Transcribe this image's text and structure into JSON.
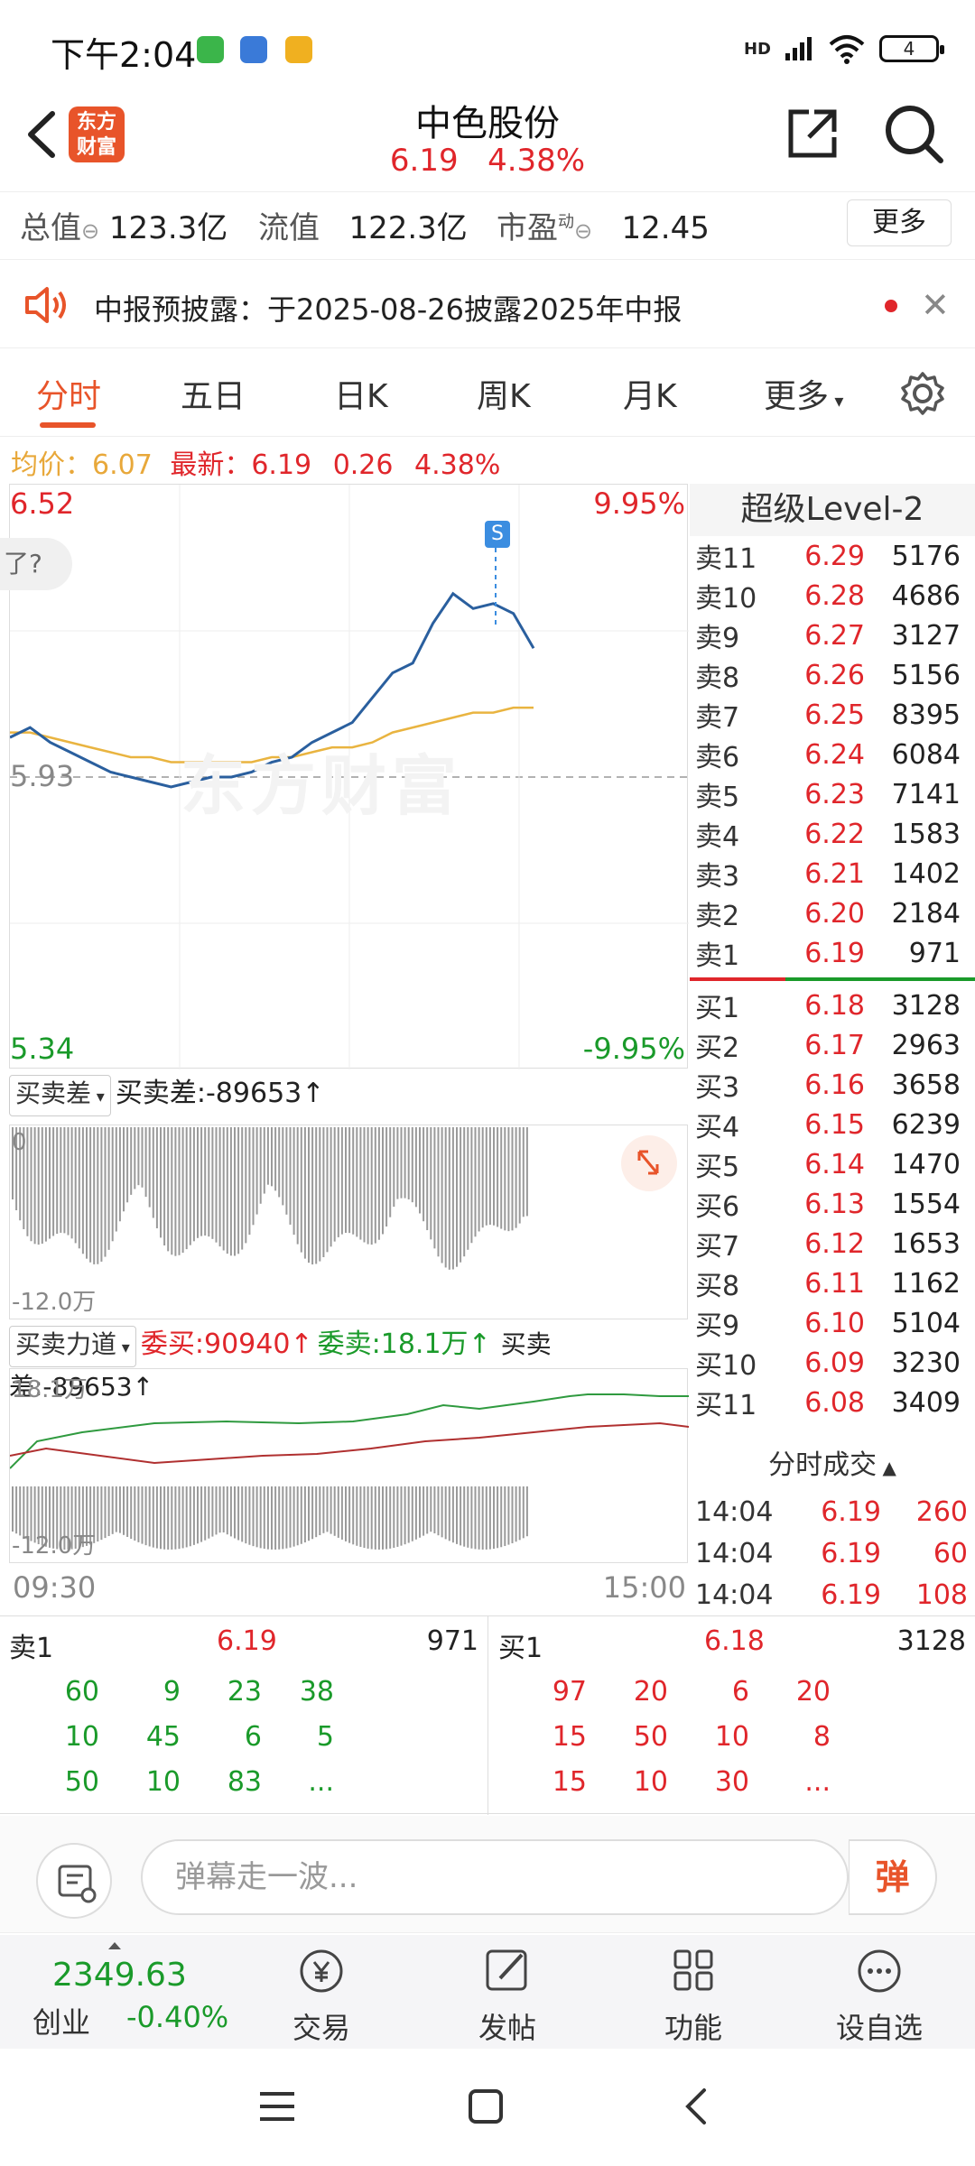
{
  "status_bar": {
    "time": "下午2:04",
    "network": "HD",
    "battery": "4"
  },
  "header": {
    "logo_line1": "东方",
    "logo_line2": "财富",
    "stock_name": "中色股份",
    "price": "6.19",
    "change_pct": "4.38%"
  },
  "metrics": {
    "total_value_label": "总值",
    "total_value": "123.3亿",
    "float_value_label": "流值",
    "float_value": "122.3亿",
    "pe_label": "市盈",
    "pe_sup": "动",
    "pe_value": "12.45",
    "more_label": "更多"
  },
  "notice": {
    "text": "中报预披露：于2025-08-26披露2025年中报"
  },
  "tabs": [
    {
      "label": "分时"
    },
    {
      "label": "五日"
    },
    {
      "label": "日K"
    },
    {
      "label": "周K"
    },
    {
      "label": "月K"
    },
    {
      "label": "更多"
    }
  ],
  "avgline": {
    "avg_label": "均价：",
    "avg_value": "6.07",
    "last_label": "最新：",
    "last_value": "6.19",
    "change": "0.26",
    "change_pct": "4.38%"
  },
  "chart_main": {
    "top_price": "6.52",
    "top_pct": "9.95%",
    "mid_price": "5.93",
    "bottom_price": "5.34",
    "bottom_pct": "-9.95%",
    "marker": "S",
    "watermark": "东方财富",
    "tip": "了?"
  },
  "chart_data": {
    "type": "line",
    "ylim": [
      5.34,
      6.52
    ],
    "series": [
      {
        "values": [
          6.01,
          6.03,
          6.0,
          5.98,
          5.96,
          5.94,
          5.93,
          5.92,
          5.91,
          5.92,
          5.93,
          5.93,
          5.94,
          5.96,
          5.97,
          6.0,
          6.02,
          6.04,
          6.09,
          6.14,
          6.16,
          6.24,
          6.3,
          6.27,
          6.28,
          6.26,
          6.19
        ]
      },
      {
        "values": [
          6.02,
          6.02,
          6.01,
          6.0,
          5.99,
          5.98,
          5.97,
          5.97,
          5.96,
          5.96,
          5.96,
          5.96,
          5.96,
          5.97,
          5.97,
          5.98,
          5.99,
          5.99,
          6.0,
          6.02,
          6.03,
          6.04,
          6.05,
          6.06,
          6.06,
          6.07,
          6.07
        ]
      }
    ]
  },
  "level2": {
    "title": "超级Level-2",
    "asks": [
      {
        "label": "卖11",
        "price": "6.29",
        "vol": "5176"
      },
      {
        "label": "卖10",
        "price": "6.28",
        "vol": "4686"
      },
      {
        "label": "卖9",
        "price": "6.27",
        "vol": "3127"
      },
      {
        "label": "卖8",
        "price": "6.26",
        "vol": "5156"
      },
      {
        "label": "卖7",
        "price": "6.25",
        "vol": "8395"
      },
      {
        "label": "卖6",
        "price": "6.24",
        "vol": "6084"
      },
      {
        "label": "卖5",
        "price": "6.23",
        "vol": "7141"
      },
      {
        "label": "卖4",
        "price": "6.22",
        "vol": "1583"
      },
      {
        "label": "卖3",
        "price": "6.21",
        "vol": "1402"
      },
      {
        "label": "卖2",
        "price": "6.20",
        "vol": "2184"
      },
      {
        "label": "卖1",
        "price": "6.19",
        "vol": "971"
      }
    ],
    "bids": [
      {
        "label": "买1",
        "price": "6.18",
        "vol": "3128"
      },
      {
        "label": "买2",
        "price": "6.17",
        "vol": "2963"
      },
      {
        "label": "买3",
        "price": "6.16",
        "vol": "3658"
      },
      {
        "label": "买4",
        "price": "6.15",
        "vol": "6239"
      },
      {
        "label": "买5",
        "price": "6.14",
        "vol": "1470"
      },
      {
        "label": "买6",
        "price": "6.13",
        "vol": "1554"
      },
      {
        "label": "买7",
        "price": "6.12",
        "vol": "1653"
      },
      {
        "label": "买8",
        "price": "6.11",
        "vol": "1162"
      },
      {
        "label": "买9",
        "price": "6.10",
        "vol": "5104"
      },
      {
        "label": "买10",
        "price": "6.09",
        "vol": "3230"
      },
      {
        "label": "买11",
        "price": "6.08",
        "vol": "3409"
      }
    ]
  },
  "sub1": {
    "select_label": "买卖差",
    "value_text": "买卖差:-89653",
    "zero": "0",
    "bottom": "-12.0万"
  },
  "sub2": {
    "select_label": "买卖力道",
    "buy_text": "委买:90940",
    "sell_text": "委卖:18.1万",
    "diff_text": "买卖差:-89653",
    "top": "18.1万",
    "bottom": "-12.0万"
  },
  "time_axis": {
    "start": "09:30",
    "end": "15:00"
  },
  "trades": {
    "title": "分时成交",
    "rows": [
      {
        "time": "14:04",
        "price": "6.19",
        "vol": "260"
      },
      {
        "time": "14:04",
        "price": "6.19",
        "vol": "60"
      },
      {
        "time": "14:04",
        "price": "6.19",
        "vol": "108"
      }
    ]
  },
  "queue": {
    "sell_label": "卖1",
    "sell_price": "6.19",
    "sell_vol": "971",
    "buy_label": "买1",
    "buy_price": "6.18",
    "buy_vol": "3128",
    "sell_rows": [
      [
        "60",
        "9",
        "23",
        "38"
      ],
      [
        "10",
        "45",
        "6",
        "5"
      ],
      [
        "50",
        "10",
        "83",
        "..."
      ]
    ],
    "buy_rows": [
      [
        "97",
        "20",
        "6",
        "20"
      ],
      [
        "15",
        "50",
        "10",
        "8"
      ],
      [
        "15",
        "10",
        "30",
        "..."
      ]
    ]
  },
  "danmaku": {
    "placeholder": "弹幕走一波...",
    "send_label": "弹"
  },
  "bottom_nav": {
    "index_value": "2349.63",
    "index_name": "创业",
    "index_change": "-0.40%",
    "items": [
      {
        "label": "交易",
        "icon": "yen-trade-icon"
      },
      {
        "label": "发帖",
        "icon": "edit-post-icon"
      },
      {
        "label": "功能",
        "icon": "grid-function-icon"
      },
      {
        "label": "设自选",
        "icon": "more-dots-icon"
      }
    ]
  }
}
